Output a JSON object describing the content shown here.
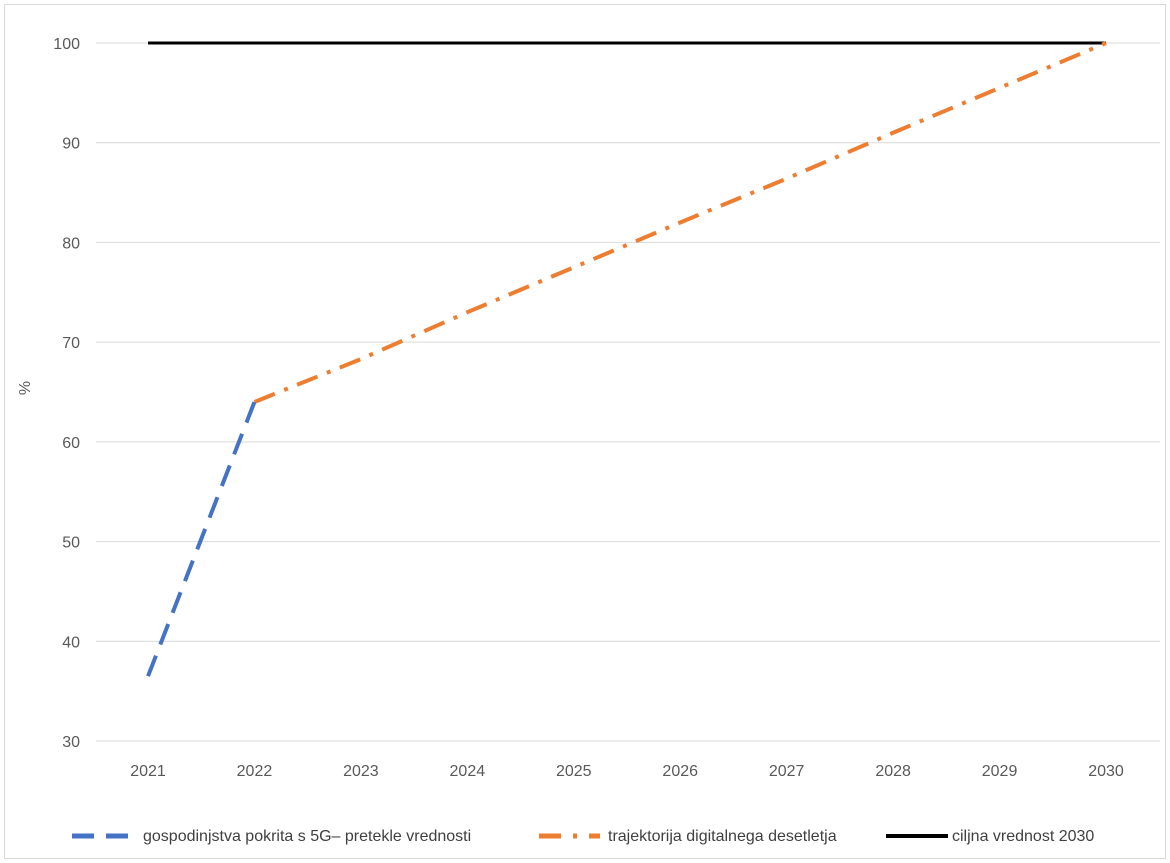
{
  "chart_data": {
    "type": "line",
    "title": "",
    "xlabel": "",
    "ylabel": "%",
    "ylim": [
      30,
      100
    ],
    "yticks": [
      30,
      40,
      50,
      60,
      70,
      80,
      90,
      100
    ],
    "categories": [
      "2021",
      "2022",
      "2023",
      "2024",
      "2025",
      "2026",
      "2027",
      "2028",
      "2029",
      "2030"
    ],
    "grid": "horizontal",
    "legend_position": "bottom",
    "series": [
      {
        "name": "gospodinjstva pokrita s 5G– pretekle vrednosti",
        "color": "#4472c4",
        "style": "dashed",
        "points": [
          [
            "2021",
            36.5
          ],
          [
            "2022",
            64
          ]
        ]
      },
      {
        "name": "trajektorija digitalnega desetletja",
        "color": "#ed7d31",
        "style": "dash-dot",
        "points": [
          [
            "2022",
            64
          ],
          [
            "2023",
            68.3
          ],
          [
            "2024",
            73
          ],
          [
            "2025",
            77.5
          ],
          [
            "2026",
            82
          ],
          [
            "2027",
            86.4
          ],
          [
            "2028",
            91
          ],
          [
            "2029",
            95.5
          ],
          [
            "2030",
            100
          ]
        ]
      },
      {
        "name": "ciljna vrednost 2030",
        "color": "#000000",
        "style": "solid",
        "points": [
          [
            "2021",
            100
          ],
          [
            "2022",
            100
          ],
          [
            "2023",
            100
          ],
          [
            "2024",
            100
          ],
          [
            "2025",
            100
          ],
          [
            "2026",
            100
          ],
          [
            "2027",
            100
          ],
          [
            "2028",
            100
          ],
          [
            "2029",
            100
          ],
          [
            "2030",
            100
          ]
        ]
      }
    ]
  }
}
